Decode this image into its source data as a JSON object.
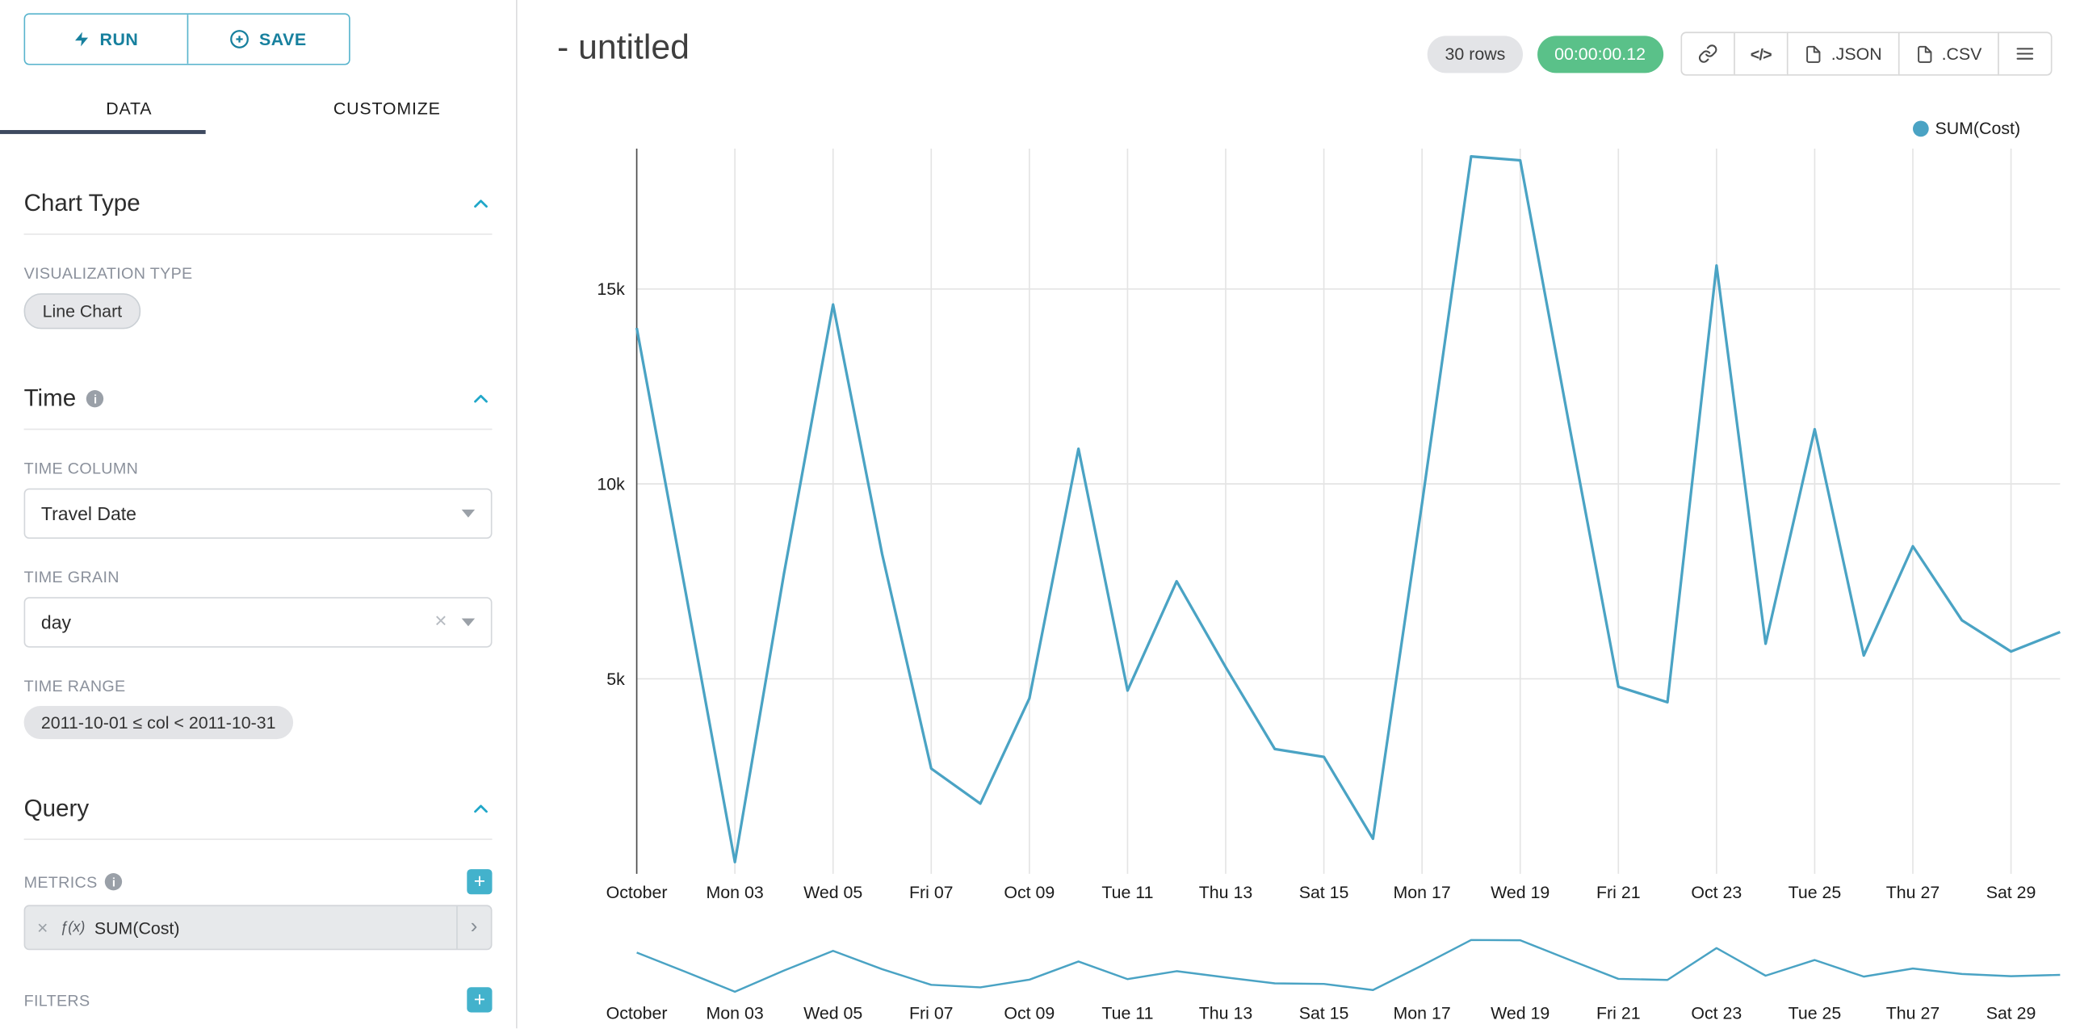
{
  "sidebar": {
    "run_label": "RUN",
    "save_label": "SAVE",
    "tabs": {
      "data": "DATA",
      "customize": "CUSTOMIZE"
    },
    "info_glyph": "i",
    "clear_glyph": "×",
    "caret_glyph": "›",
    "add_glyph": "+",
    "chart_type_section": {
      "title": "Chart Type",
      "visualization_type_label": "VISUALIZATION TYPE",
      "visualization_type_value": "Line Chart"
    },
    "time_section": {
      "title": "Time",
      "time_column_label": "TIME COLUMN",
      "time_column_value": "Travel Date",
      "time_grain_label": "TIME GRAIN",
      "time_grain_value": "day",
      "time_range_label": "TIME RANGE",
      "time_range_value": "2011-10-01 ≤ col < 2011-10-31"
    },
    "query_section": {
      "title": "Query",
      "metrics_label": "METRICS",
      "metric_fx": "ƒ(x)",
      "metric_value": "SUM(Cost)",
      "filters_label": "FILTERS"
    }
  },
  "header": {
    "title": "- untitled",
    "rows_badge": "30 rows",
    "timer_badge": "00:00:00.12",
    "code_glyph": "</>",
    "json_label": ".JSON",
    "csv_label": ".CSV"
  },
  "legend": {
    "label": "SUM(Cost)"
  },
  "colors": {
    "accent": "#20a7c9",
    "timer_green": "#5ac189",
    "line": "#4aa3c4",
    "tab_underline": "#3e4a60"
  },
  "chart_data": {
    "type": "line",
    "title": "- untitled",
    "color": "#4aa3c4",
    "grid": true,
    "legend_position": "top-right",
    "xlabel": "",
    "ylabel": "",
    "ylim": [
      0,
      18600
    ],
    "y_ticks": [
      5000,
      10000,
      15000
    ],
    "y_tick_labels": [
      "5k",
      "10k",
      "15k"
    ],
    "x": [
      "2011-10-01",
      "2011-10-02",
      "2011-10-03",
      "2011-10-04",
      "2011-10-05",
      "2011-10-06",
      "2011-10-07",
      "2011-10-08",
      "2011-10-09",
      "2011-10-10",
      "2011-10-11",
      "2011-10-12",
      "2011-10-13",
      "2011-10-14",
      "2011-10-15",
      "2011-10-16",
      "2011-10-17",
      "2011-10-18",
      "2011-10-19",
      "2011-10-20",
      "2011-10-21",
      "2011-10-22",
      "2011-10-23",
      "2011-10-24",
      "2011-10-25",
      "2011-10-26",
      "2011-10-27",
      "2011-10-28",
      "2011-10-29",
      "2011-10-30"
    ],
    "x_tick_labels": [
      "October",
      "Mon 03",
      "Wed 05",
      "Fri 07",
      "Oct 09",
      "Tue 11",
      "Thu 13",
      "Sat 15",
      "Mon 17",
      "Wed 19",
      "Fri 21",
      "Oct 23",
      "Tue 25",
      "Thu 27",
      "Sat 29"
    ],
    "series": [
      {
        "name": "SUM(Cost)",
        "values": [
          14000,
          7200,
          300,
          7700,
          14600,
          8200,
          2700,
          1800,
          4500,
          10900,
          4700,
          7500,
          5300,
          3200,
          3000,
          900,
          9500,
          18400,
          18300,
          11500,
          4800,
          4400,
          15600,
          5900,
          11400,
          5600,
          8400,
          6500,
          5700,
          6200
        ]
      }
    ],
    "has_mini_chart": true
  }
}
